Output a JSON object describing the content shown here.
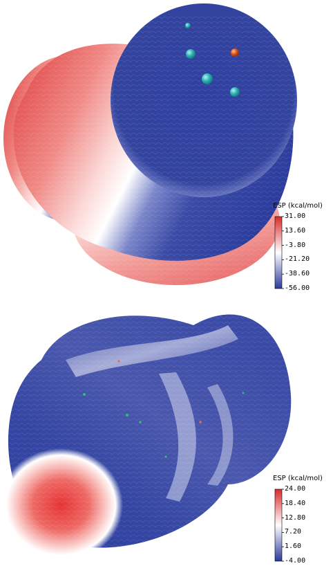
{
  "panels": [
    {
      "colorbar": {
        "title": "ESP  (kcal/mol)",
        "ticks": [
          "31.00",
          "13.60",
          "-3.80",
          "-21.20",
          "-38.60",
          "-56.00"
        ],
        "colors": {
          "max": "#d92a2a",
          "mid": "#ffffff",
          "min": "#2a3a9c"
        }
      },
      "atoms": [
        {
          "color": "#2fb3b8"
        },
        {
          "color": "#2fb3b8"
        },
        {
          "color": "#e0551b"
        },
        {
          "color": "#2fb3b8"
        },
        {
          "color": "#2fb3b8"
        }
      ]
    },
    {
      "colorbar": {
        "title": "ESP  (kcal/mol)",
        "ticks": [
          "24.00",
          "18.40",
          "12.80",
          "7.20",
          "1.60",
          "-4.00"
        ],
        "colors": {
          "max": "#d92a2a",
          "mid": "#ffffff",
          "min": "#2a3a9c"
        }
      }
    }
  ]
}
